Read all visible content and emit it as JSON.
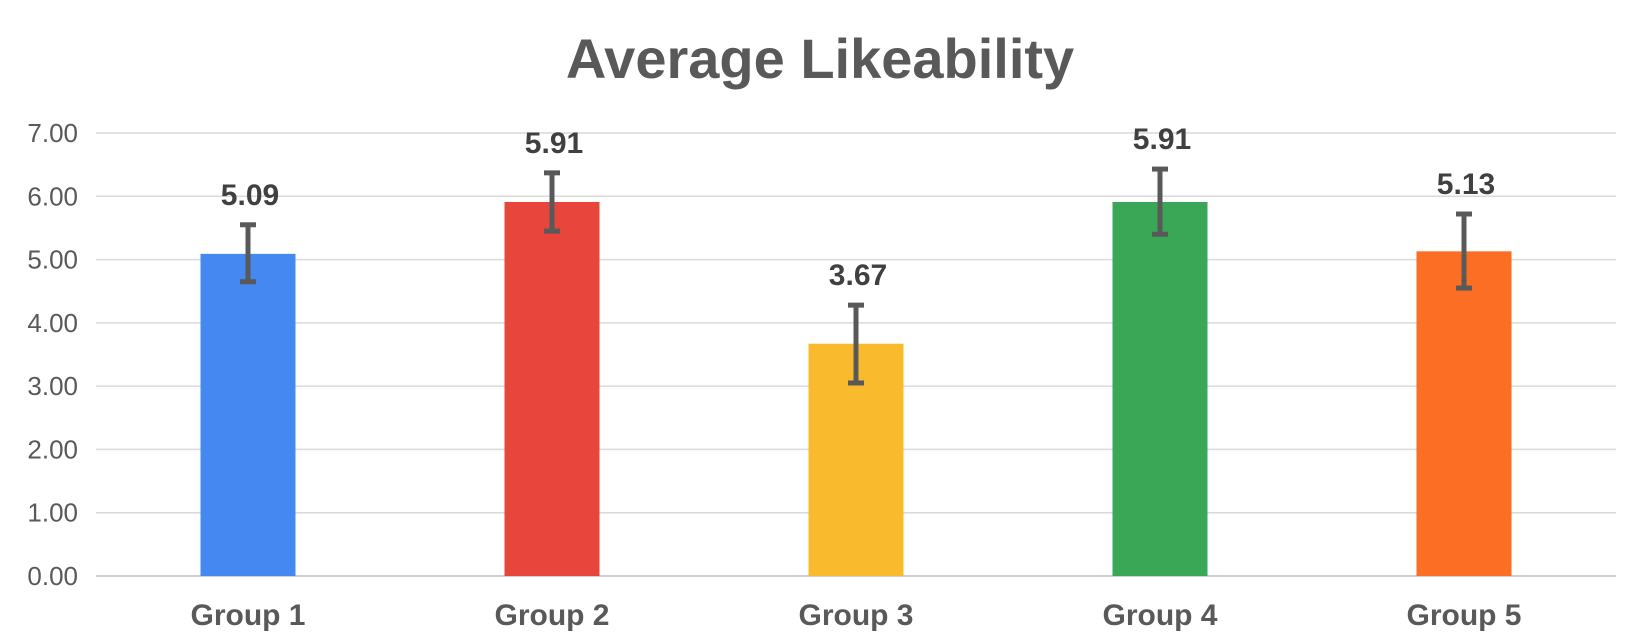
{
  "chart_data": {
    "type": "bar",
    "title": "Average Likeability",
    "xlabel": "",
    "ylabel": "",
    "ylim": [
      0,
      7
    ],
    "yticks": [
      0,
      1,
      2,
      3,
      4,
      5,
      6,
      7
    ],
    "ytick_labels": [
      "0.00",
      "1.00",
      "2.00",
      "3.00",
      "4.00",
      "5.00",
      "6.00",
      "7.00"
    ],
    "grid": true,
    "legend": "none",
    "categories": [
      "Group 1",
      "Group 2",
      "Group 3",
      "Group 4",
      "Group 5"
    ],
    "values": [
      5.09,
      5.91,
      3.67,
      5.91,
      5.13
    ],
    "value_labels": [
      "5.09",
      "5.91",
      "3.67",
      "5.91",
      "5.13"
    ],
    "error_low": [
      4.65,
      5.45,
      3.05,
      5.4,
      4.55
    ],
    "error_high": [
      5.55,
      6.37,
      4.28,
      6.43,
      5.72
    ],
    "colors": [
      "#4688f1",
      "#e8453c",
      "#f9bb2d",
      "#3aa757",
      "#fc6e23"
    ],
    "error_bar_color": "#595959"
  }
}
